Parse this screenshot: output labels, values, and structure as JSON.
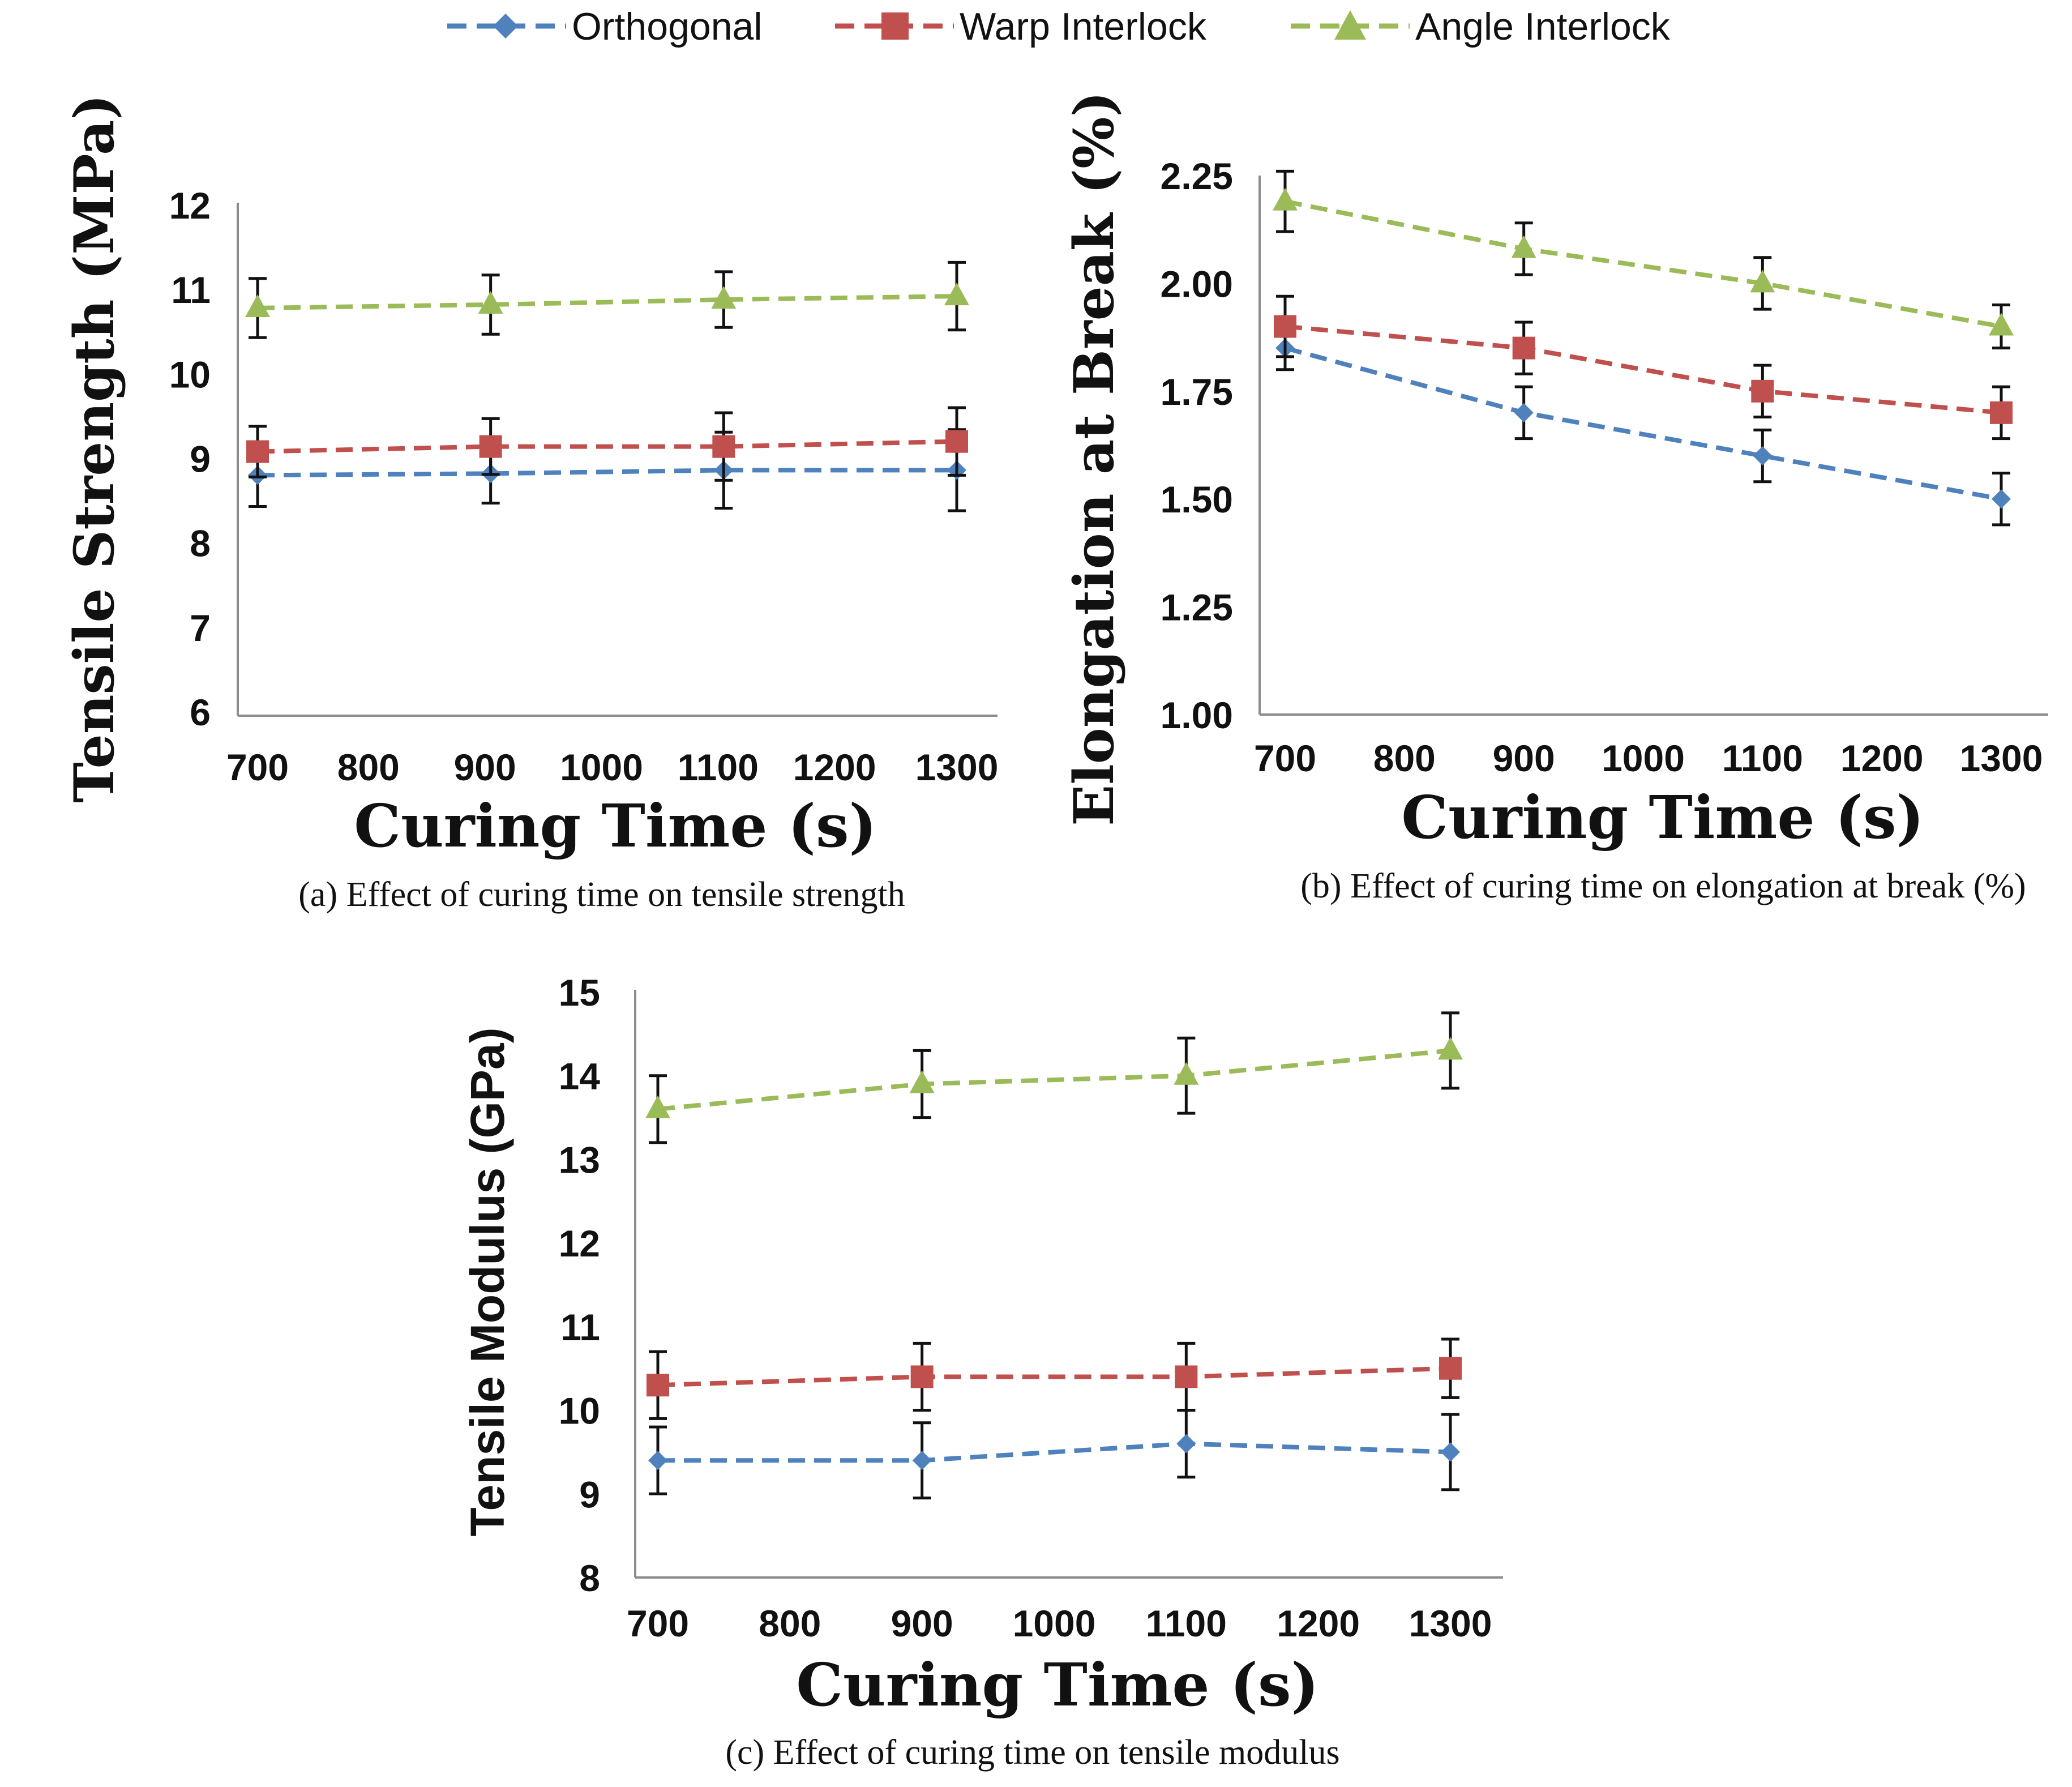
{
  "legend": {
    "entries": [
      {
        "label": "Orthogonal",
        "color": "#4F81BD",
        "marker": "diamond"
      },
      {
        "label": "Warp Interlock",
        "color": "#C0504D",
        "marker": "square"
      },
      {
        "label": "Angle Interlock",
        "color": "#9BBB59",
        "marker": "triangle"
      }
    ]
  },
  "chart_data": [
    {
      "id": "a",
      "type": "line",
      "title": "",
      "caption": "(a) Effect of curing time on tensile strength",
      "xlabel": "Curing Time (s)",
      "ylabel": "Tensile Strength (MPa)",
      "xlim": [
        700,
        1300
      ],
      "ylim": [
        6,
        12
      ],
      "xticks": [
        "700",
        "800",
        "900",
        "1000",
        "1100",
        "1200",
        "1300"
      ],
      "yticks": [
        "6",
        "7",
        "8",
        "9",
        "10",
        "11",
        "12"
      ],
      "x": [
        700,
        900,
        1100,
        1300
      ],
      "series": [
        {
          "name": "Orthogonal",
          "values": [
            8.8,
            8.82,
            8.86,
            8.86
          ],
          "errors": [
            0.37,
            0.35,
            0.45,
            0.48
          ]
        },
        {
          "name": "Warp Interlock",
          "values": [
            9.08,
            9.14,
            9.14,
            9.2
          ],
          "errors": [
            0.3,
            0.33,
            0.4,
            0.4
          ]
        },
        {
          "name": "Angle Interlock",
          "values": [
            10.78,
            10.82,
            10.88,
            10.92
          ],
          "errors": [
            0.35,
            0.35,
            0.33,
            0.4
          ]
        }
      ]
    },
    {
      "id": "b",
      "type": "line",
      "title": "",
      "caption": "(b) Effect of curing time on elongation at break (%)",
      "xlabel": "Curing Time (s)",
      "ylabel": "Elongation at Break (%)",
      "xlim": [
        700,
        1300
      ],
      "ylim": [
        1.0,
        2.25
      ],
      "xticks": [
        "700",
        "800",
        "900",
        "1000",
        "1100",
        "1200",
        "1300"
      ],
      "yticks": [
        "1.00",
        "1.25",
        "1.50",
        "1.75",
        "2.00",
        "2.25"
      ],
      "x": [
        700,
        900,
        1100,
        1300
      ],
      "series": [
        {
          "name": "Orthogonal",
          "values": [
            1.85,
            1.7,
            1.6,
            1.5
          ],
          "errors": [
            0.05,
            0.06,
            0.06,
            0.06
          ]
        },
        {
          "name": "Warp Interlock",
          "values": [
            1.9,
            1.85,
            1.75,
            1.7
          ],
          "errors": [
            0.07,
            0.06,
            0.06,
            0.06
          ]
        },
        {
          "name": "Angle Interlock",
          "values": [
            2.19,
            2.08,
            2.0,
            1.9
          ],
          "errors": [
            0.07,
            0.06,
            0.06,
            0.05
          ]
        }
      ]
    },
    {
      "id": "c",
      "type": "line",
      "title": "",
      "caption": "(c) Effect of curing time on tensile modulus",
      "xlabel": "Curing Time (s)",
      "ylabel": "Tensile Modulus (GPa)",
      "xlim": [
        700,
        1300
      ],
      "ylim": [
        8,
        15
      ],
      "xticks": [
        "700",
        "800",
        "900",
        "1000",
        "1100",
        "1200",
        "1300"
      ],
      "yticks": [
        "8",
        "9",
        "10",
        "11",
        "12",
        "13",
        "14",
        "15"
      ],
      "x": [
        700,
        900,
        1100,
        1300
      ],
      "series": [
        {
          "name": "Orthogonal",
          "values": [
            9.4,
            9.4,
            9.6,
            9.5
          ],
          "errors": [
            0.4,
            0.45,
            0.4,
            0.45
          ]
        },
        {
          "name": "Warp Interlock",
          "values": [
            10.3,
            10.4,
            10.4,
            10.5
          ],
          "errors": [
            0.4,
            0.4,
            0.4,
            0.35
          ]
        },
        {
          "name": "Angle Interlock",
          "values": [
            13.6,
            13.9,
            14.0,
            14.3
          ],
          "errors": [
            0.4,
            0.4,
            0.45,
            0.45
          ]
        }
      ]
    }
  ]
}
